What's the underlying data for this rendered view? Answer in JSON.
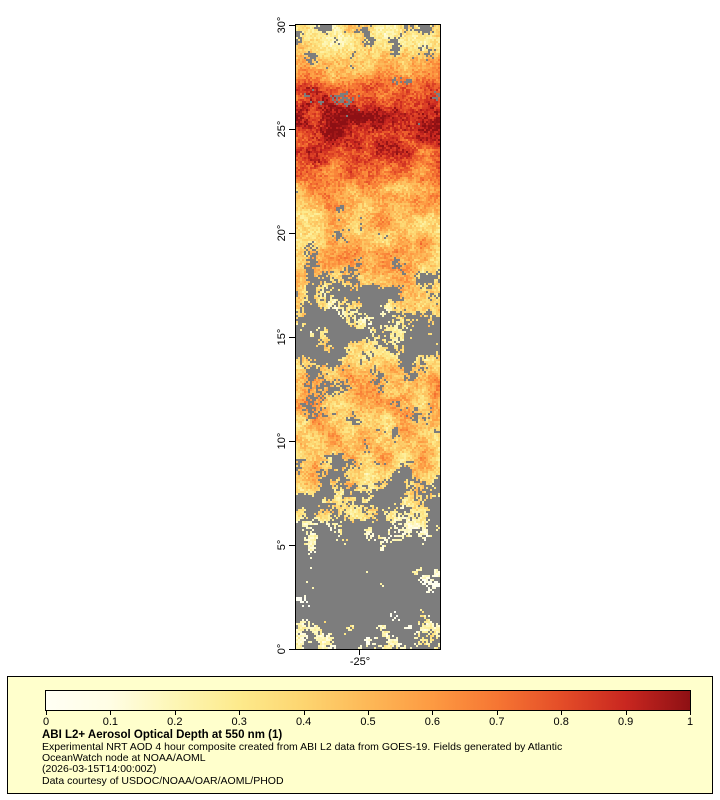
{
  "map": {
    "lat_tick_labels": [
      "30°",
      "25°",
      "20°",
      "15°",
      "10°",
      "5°",
      "0°"
    ],
    "lon_tick_label": "-25°",
    "nodata_color": "#7d7d7d"
  },
  "colorbar": {
    "tick_labels": [
      "0",
      "0.1",
      "0.2",
      "0.3",
      "0.4",
      "0.5",
      "0.6",
      "0.7",
      "0.8",
      "0.9",
      "1"
    ],
    "stops": [
      "#fffff4",
      "#fffde4",
      "#fdf6b5",
      "#fdea8c",
      "#fdd570",
      "#fdb857",
      "#fd9a42",
      "#f67633",
      "#e44d28",
      "#c92720",
      "#8e1014"
    ]
  },
  "legend": {
    "background": "#ffffcc",
    "title": "ABI L2+ Aerosol Optical Depth at 550 nm (1)",
    "desc_lines": [
      "Experimental NRT AOD 4 hour composite created from ABI L2 data from GOES-19. Fields generated by Atlantic",
      "OceanWatch node at NOAA/AOML",
      "(2026-03-15T14:00:00Z)",
      "Data courtesy of USDOC/NOAA/OAR/AOML/PHOD"
    ]
  },
  "chart_data": {
    "type": "heatmap",
    "title": "ABI L2+ Aerosol Optical Depth at 550 nm (1)",
    "variable": "Aerosol Optical Depth at 550 nm",
    "units": "1",
    "timestamp": "2026-03-15T14:00:00Z",
    "lat_range": [
      0,
      30
    ],
    "lat_ticks": [
      30,
      25,
      20,
      15,
      10,
      5,
      0
    ],
    "lon_ticks": [
      -25
    ],
    "colorbar_range": [
      0,
      1
    ],
    "colorbar_ticks": [
      0,
      0.1,
      0.2,
      0.3,
      0.4,
      0.5,
      0.6,
      0.7,
      0.8,
      0.9,
      1
    ],
    "legend_position": "bottom",
    "nodata_meaning": "cloud / no retrieval (gray)",
    "aod_profile": [
      [
        0,
        0.18
      ],
      [
        1,
        0.15
      ],
      [
        2,
        0.12
      ],
      [
        3,
        0.12
      ],
      [
        4,
        0.15
      ],
      [
        5,
        0.2
      ],
      [
        6,
        0.25
      ],
      [
        7,
        0.3
      ],
      [
        8,
        0.4
      ],
      [
        9,
        0.45
      ],
      [
        10,
        0.5
      ],
      [
        11,
        0.45
      ],
      [
        12,
        0.5
      ],
      [
        13,
        0.55
      ],
      [
        14,
        0.4
      ],
      [
        15,
        0.35
      ],
      [
        16,
        0.3
      ],
      [
        17,
        0.35
      ],
      [
        18,
        0.4
      ],
      [
        19,
        0.5
      ],
      [
        20,
        0.45
      ],
      [
        21,
        0.5
      ],
      [
        22,
        0.55
      ],
      [
        23,
        0.7
      ],
      [
        24,
        0.8
      ],
      [
        25,
        0.92
      ],
      [
        26,
        0.9
      ],
      [
        27,
        0.75
      ],
      [
        28,
        0.5
      ],
      [
        29,
        0.38
      ],
      [
        30,
        0.3
      ]
    ],
    "cloud_fraction_profile": [
      [
        0,
        0.5
      ],
      [
        2,
        0.7
      ],
      [
        4,
        0.75
      ],
      [
        6,
        0.6
      ],
      [
        8,
        0.45
      ],
      [
        10,
        0.3
      ],
      [
        12,
        0.35
      ],
      [
        14,
        0.5
      ],
      [
        15,
        0.6
      ],
      [
        16,
        0.55
      ],
      [
        18,
        0.4
      ],
      [
        20,
        0.25
      ],
      [
        22,
        0.15
      ],
      [
        24,
        0.18
      ],
      [
        26,
        0.25
      ],
      [
        28,
        0.3
      ],
      [
        30,
        0.45
      ]
    ]
  }
}
